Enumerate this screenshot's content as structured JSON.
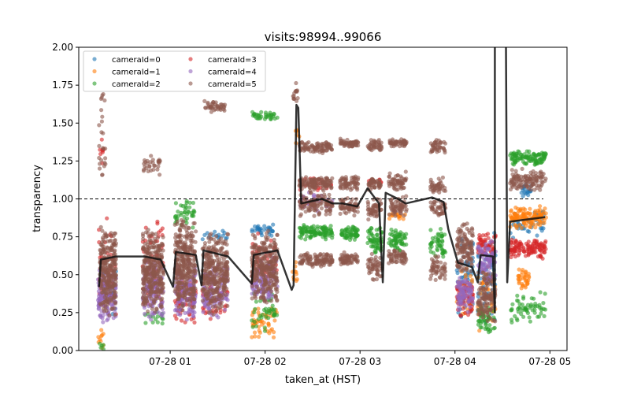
{
  "chart_data": {
    "type": "scatter",
    "title": "visits:98994..99066",
    "xlabel": "taken_at (HST)",
    "ylabel": "transparency",
    "ylim": [
      0,
      2
    ],
    "xlim_hours": [
      0.037,
      5.18
    ],
    "x_ticks": [
      {
        "h": 1,
        "label": "07-28 01"
      },
      {
        "h": 2,
        "label": "07-28 02"
      },
      {
        "h": 3,
        "label": "07-28 03"
      },
      {
        "h": 4,
        "label": "07-28 04"
      },
      {
        "h": 5,
        "label": "07-28 05"
      }
    ],
    "y_ticks": [
      "0.00",
      "0.25",
      "0.50",
      "0.75",
      "1.00",
      "1.25",
      "1.50",
      "1.75",
      "2.00"
    ],
    "reference_line": 1.0,
    "legend": {
      "placement": "upper-left",
      "columns": 2,
      "entries": [
        {
          "label": "cameraId=0",
          "color": "#1f77b4"
        },
        {
          "label": "cameraId=1",
          "color": "#ff7f0e"
        },
        {
          "label": "cameraId=2",
          "color": "#2ca02c"
        },
        {
          "label": "cameraId=3",
          "color": "#d62728"
        },
        {
          "label": "cameraId=4",
          "color": "#9467bd"
        },
        {
          "label": "cameraId=5",
          "color": "#8c564b"
        }
      ]
    },
    "clusters_note": "[cameraId, hour_start, hour_end, transparency_low, transparency_high, approx_count]",
    "clusters": [
      [
        1,
        0.24,
        0.3,
        0.0,
        0.2,
        10
      ],
      [
        2,
        0.24,
        0.3,
        0.0,
        0.05,
        5
      ],
      [
        3,
        0.24,
        0.43,
        0.2,
        0.95,
        40
      ],
      [
        0,
        0.24,
        0.43,
        0.15,
        0.7,
        20
      ],
      [
        4,
        0.24,
        0.43,
        0.15,
        0.55,
        120
      ],
      [
        5,
        0.26,
        0.43,
        0.22,
        0.82,
        260
      ],
      [
        5,
        0.25,
        0.32,
        1.05,
        1.78,
        25
      ],
      [
        3,
        0.25,
        0.3,
        1.2,
        1.4,
        8
      ],
      [
        3,
        0.71,
        0.93,
        0.25,
        0.92,
        50
      ],
      [
        2,
        0.71,
        0.93,
        0.15,
        0.3,
        15
      ],
      [
        4,
        0.71,
        0.93,
        0.18,
        0.6,
        120
      ],
      [
        5,
        0.71,
        0.93,
        0.22,
        0.82,
        300
      ],
      [
        5,
        0.72,
        0.9,
        1.15,
        1.3,
        30
      ],
      [
        2,
        1.05,
        1.27,
        0.8,
        1.0,
        40
      ],
      [
        3,
        1.05,
        1.27,
        0.15,
        0.5,
        50
      ],
      [
        4,
        1.05,
        1.27,
        0.2,
        0.6,
        120
      ],
      [
        5,
        1.05,
        1.27,
        0.22,
        0.9,
        320
      ],
      [
        3,
        1.34,
        1.61,
        0.18,
        0.5,
        40
      ],
      [
        0,
        1.34,
        1.61,
        0.7,
        0.82,
        15
      ],
      [
        4,
        1.34,
        1.61,
        0.2,
        0.6,
        120
      ],
      [
        5,
        1.34,
        1.61,
        0.22,
        0.82,
        320
      ],
      [
        5,
        1.36,
        1.6,
        1.57,
        1.65,
        40
      ],
      [
        1,
        1.86,
        2.13,
        0.08,
        0.3,
        50
      ],
      [
        2,
        1.86,
        2.13,
        0.12,
        0.4,
        40
      ],
      [
        0,
        1.86,
        2.13,
        0.75,
        0.84,
        30
      ],
      [
        3,
        1.86,
        2.13,
        0.4,
        0.8,
        40
      ],
      [
        4,
        1.86,
        2.13,
        0.3,
        0.62,
        100
      ],
      [
        5,
        1.86,
        2.13,
        0.3,
        0.8,
        300
      ],
      [
        2,
        1.86,
        2.13,
        1.52,
        1.58,
        35
      ],
      [
        1,
        2.28,
        2.34,
        0.4,
        0.6,
        10
      ],
      [
        5,
        2.29,
        2.35,
        1.6,
        1.8,
        15
      ],
      [
        1,
        2.32,
        2.36,
        1.35,
        1.5,
        6
      ],
      [
        5,
        2.36,
        2.71,
        1.3,
        1.38,
        90
      ],
      [
        5,
        2.36,
        2.71,
        1.05,
        1.15,
        110
      ],
      [
        3,
        2.36,
        2.71,
        1.05,
        1.15,
        25
      ],
      [
        5,
        2.36,
        2.71,
        0.88,
        1.05,
        110
      ],
      [
        4,
        2.36,
        2.71,
        0.9,
        1.05,
        40
      ],
      [
        2,
        2.36,
        2.71,
        0.73,
        0.83,
        110
      ],
      [
        5,
        2.36,
        2.71,
        0.55,
        0.65,
        110
      ],
      [
        5,
        2.79,
        2.98,
        1.34,
        1.4,
        50
      ],
      [
        5,
        2.79,
        2.98,
        1.05,
        1.15,
        60
      ],
      [
        5,
        2.79,
        2.98,
        0.88,
        1.02,
        60
      ],
      [
        2,
        2.79,
        2.98,
        0.72,
        0.82,
        60
      ],
      [
        5,
        2.79,
        2.98,
        0.56,
        0.65,
        60
      ],
      [
        5,
        3.08,
        3.23,
        1.3,
        1.4,
        40
      ],
      [
        5,
        3.08,
        3.23,
        1.05,
        1.15,
        50
      ],
      [
        3,
        3.08,
        3.23,
        1.08,
        1.15,
        10
      ],
      [
        5,
        3.08,
        3.23,
        0.85,
        1.02,
        50
      ],
      [
        2,
        3.08,
        3.23,
        0.62,
        0.82,
        60
      ],
      [
        5,
        3.08,
        3.23,
        0.45,
        0.65,
        50
      ],
      [
        5,
        3.3,
        3.49,
        1.34,
        1.4,
        50
      ],
      [
        5,
        3.3,
        3.49,
        1.05,
        1.18,
        60
      ],
      [
        5,
        3.3,
        3.49,
        0.88,
        1.02,
        60
      ],
      [
        1,
        3.3,
        3.49,
        0.85,
        0.92,
        15
      ],
      [
        2,
        3.3,
        3.49,
        0.65,
        0.82,
        60
      ],
      [
        5,
        3.3,
        3.49,
        0.55,
        0.68,
        60
      ],
      [
        5,
        3.74,
        3.9,
        1.3,
        1.4,
        40
      ],
      [
        5,
        3.74,
        3.9,
        1.02,
        1.15,
        40
      ],
      [
        5,
        3.74,
        3.9,
        0.88,
        1.0,
        40
      ],
      [
        2,
        3.74,
        3.9,
        0.6,
        0.82,
        50
      ],
      [
        5,
        3.74,
        3.9,
        0.45,
        0.65,
        50
      ],
      [
        0,
        4.02,
        4.19,
        0.15,
        0.85,
        60
      ],
      [
        3,
        4.02,
        4.19,
        0.2,
        0.5,
        60
      ],
      [
        4,
        4.02,
        4.19,
        0.25,
        0.5,
        80
      ],
      [
        1,
        4.02,
        4.19,
        0.2,
        0.6,
        30
      ],
      [
        5,
        4.02,
        4.19,
        0.5,
        0.85,
        120
      ],
      [
        0,
        4.24,
        4.43,
        0.15,
        0.8,
        60
      ],
      [
        3,
        4.24,
        4.43,
        0.6,
        0.78,
        50
      ],
      [
        2,
        4.24,
        4.43,
        0.1,
        0.3,
        50
      ],
      [
        1,
        4.24,
        4.43,
        0.1,
        0.6,
        40
      ],
      [
        4,
        4.24,
        4.43,
        0.4,
        0.75,
        80
      ],
      [
        5,
        4.24,
        4.43,
        0.15,
        0.55,
        120
      ],
      [
        2,
        4.58,
        4.96,
        1.22,
        1.32,
        110
      ],
      [
        5,
        4.58,
        4.96,
        1.05,
        1.2,
        110
      ],
      [
        0,
        4.7,
        4.8,
        1.0,
        1.1,
        20
      ],
      [
        0,
        4.58,
        4.96,
        0.72,
        0.95,
        40
      ],
      [
        1,
        4.58,
        4.96,
        0.8,
        0.96,
        120
      ],
      [
        3,
        4.58,
        4.96,
        0.6,
        0.75,
        120
      ],
      [
        1,
        4.66,
        4.78,
        0.4,
        0.55,
        35
      ],
      [
        2,
        4.58,
        4.96,
        0.15,
        0.4,
        60
      ]
    ],
    "median_line": [
      [
        0.25,
        0.42
      ],
      [
        0.27,
        0.6
      ],
      [
        0.43,
        0.62
      ],
      [
        0.73,
        0.62
      ],
      [
        0.9,
        0.6
      ],
      [
        1.03,
        0.42
      ],
      [
        1.06,
        0.65
      ],
      [
        1.27,
        0.63
      ],
      [
        1.33,
        0.43
      ],
      [
        1.35,
        0.66
      ],
      [
        1.61,
        0.62
      ],
      [
        1.86,
        0.44
      ],
      [
        1.88,
        0.63
      ],
      [
        2.13,
        0.66
      ],
      [
        2.28,
        0.4
      ],
      [
        2.3,
        0.43
      ],
      [
        2.33,
        1.62
      ],
      [
        2.35,
        1.6
      ],
      [
        2.38,
        0.97
      ],
      [
        2.6,
        1.0
      ],
      [
        2.71,
        0.97
      ],
      [
        2.82,
        0.97
      ],
      [
        2.97,
        0.95
      ],
      [
        3.08,
        1.07
      ],
      [
        3.2,
        0.97
      ],
      [
        3.24,
        0.45
      ],
      [
        3.27,
        1.04
      ],
      [
        3.4,
        1.0
      ],
      [
        3.48,
        0.97
      ],
      [
        3.76,
        1.01
      ],
      [
        3.88,
        0.98
      ],
      [
        3.93,
        0.8
      ],
      [
        4.03,
        0.58
      ],
      [
        4.18,
        0.55
      ],
      [
        4.24,
        0.45
      ],
      [
        4.27,
        0.63
      ],
      [
        4.4,
        0.62
      ],
      [
        4.42,
        0.25
      ],
      [
        4.42,
        2.3
      ],
      [
        4.535,
        2.3
      ],
      [
        4.55,
        0.45
      ],
      [
        4.58,
        0.85
      ],
      [
        4.95,
        0.88
      ]
    ]
  }
}
